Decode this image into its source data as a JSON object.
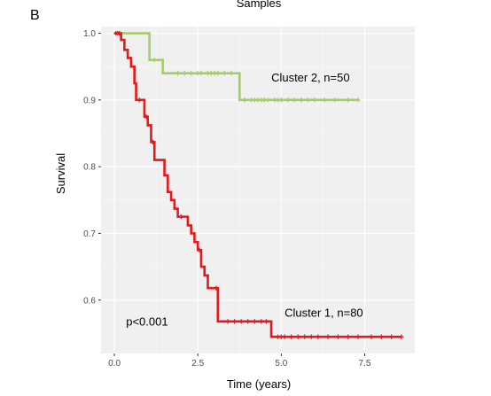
{
  "panel_label": "B",
  "chart_data": {
    "type": "line",
    "title": "Samples",
    "xlabel": "Time (years)",
    "ylabel": "Survival",
    "xlim": [
      -0.4,
      9.0
    ],
    "ylim": [
      0.52,
      1.01
    ],
    "xticks": [
      0.0,
      2.5,
      5.0,
      7.5
    ],
    "xtick_labels": [
      "0.0",
      "2.5",
      "5.0",
      "7.5"
    ],
    "yticks": [
      0.6,
      0.7,
      0.8,
      0.9,
      1.0
    ],
    "ytick_labels": [
      "0.6",
      "0.7",
      "0.8",
      "0.9",
      "1.0"
    ],
    "grid": true,
    "series": [
      {
        "name": "Cluster 2, n=50",
        "color": "#a6cc6a",
        "steps": [
          [
            0,
            1.0
          ],
          [
            1.05,
            0.96
          ],
          [
            1.45,
            0.94
          ],
          [
            3.75,
            0.9
          ],
          [
            7.3,
            0.9
          ]
        ],
        "censors": [
          1.2,
          1.9,
          2.1,
          2.3,
          2.5,
          2.6,
          2.8,
          2.9,
          3.0,
          3.1,
          3.3,
          3.5,
          3.9,
          4.1,
          4.2,
          4.3,
          4.4,
          4.5,
          4.6,
          4.8,
          4.9,
          5.0,
          5.2,
          5.4,
          5.6,
          5.8,
          6.0,
          6.3,
          6.6,
          7.0,
          7.3
        ]
      },
      {
        "name": "Cluster 1, n=80",
        "color": "#e31a1c",
        "steps": [
          [
            0,
            1.0
          ],
          [
            0.2,
            0.99
          ],
          [
            0.3,
            0.975
          ],
          [
            0.4,
            0.963
          ],
          [
            0.5,
            0.95
          ],
          [
            0.6,
            0.925
          ],
          [
            0.65,
            0.9
          ],
          [
            0.8,
            0.9
          ],
          [
            0.9,
            0.875
          ],
          [
            1.0,
            0.862
          ],
          [
            1.1,
            0.837
          ],
          [
            1.2,
            0.81
          ],
          [
            1.45,
            0.81
          ],
          [
            1.5,
            0.787
          ],
          [
            1.6,
            0.762
          ],
          [
            1.7,
            0.75
          ],
          [
            1.8,
            0.737
          ],
          [
            1.9,
            0.725
          ],
          [
            2.1,
            0.725
          ],
          [
            2.2,
            0.712
          ],
          [
            2.3,
            0.7
          ],
          [
            2.4,
            0.687
          ],
          [
            2.5,
            0.675
          ],
          [
            2.6,
            0.65
          ],
          [
            2.7,
            0.637
          ],
          [
            2.8,
            0.618
          ],
          [
            3.0,
            0.618
          ],
          [
            3.1,
            0.568
          ],
          [
            4.6,
            0.568
          ],
          [
            4.7,
            0.545
          ],
          [
            8.6,
            0.545
          ]
        ],
        "censors": [
          0.05,
          0.1,
          0.15,
          0.75,
          0.95,
          1.15,
          2.0,
          2.55,
          3.05,
          3.4,
          3.6,
          3.8,
          4.0,
          4.2,
          4.4,
          4.55,
          4.9,
          5.0,
          5.1,
          5.3,
          5.5,
          5.7,
          5.9,
          6.1,
          6.4,
          6.7,
          7.0,
          7.3,
          7.7,
          8.0,
          8.3,
          8.6
        ]
      }
    ],
    "annotations": [
      {
        "text": "Cluster 2, n=50",
        "x": 4.7,
        "y": 0.928
      },
      {
        "text": "Cluster 1, n=80",
        "x": 5.1,
        "y": 0.575
      },
      {
        "text": "p<0.001",
        "x": 0.35,
        "y": 0.562
      }
    ]
  }
}
